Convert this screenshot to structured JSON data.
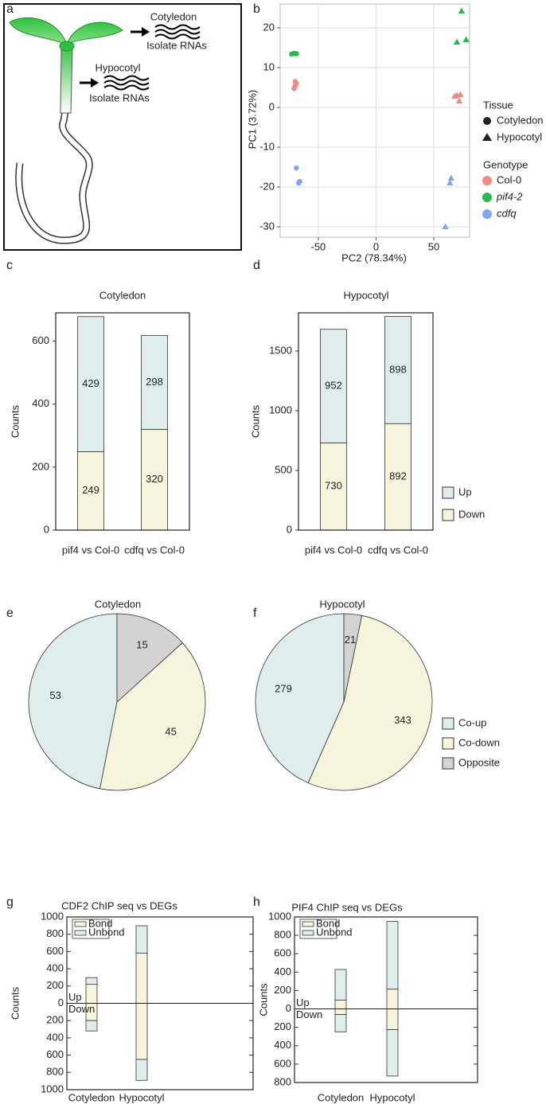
{
  "panel_labels": [
    "a",
    "b",
    "c",
    "d",
    "e",
    "f",
    "g",
    "h"
  ],
  "diagram": {
    "cotyledon_label": "Cotyledon",
    "cotyledon_action": "Isolate RNAs",
    "hypocotyl_label": "Hypocotyl",
    "hypocotyl_action": "Isolate RNAs"
  },
  "chart_data": [
    {
      "type": "scatter",
      "xlabel": "PC2 (78.34%)",
      "ylabel": "PC1 (3.72%)",
      "xlim": [
        -83,
        81
      ],
      "ylim": [
        -32.6,
        26
      ],
      "xticks": [
        -50,
        0,
        50
      ],
      "yticks": [
        -30,
        -20,
        -10,
        0,
        10,
        20
      ],
      "grid": true,
      "legend": {
        "position": "right",
        "groups": [
          {
            "title": "Tissue",
            "entries": [
              {
                "name": "Cotyledon",
                "marker": "circle"
              },
              {
                "name": "Hypocotyl",
                "marker": "triangle"
              }
            ]
          },
          {
            "title": "Genotype",
            "entries": [
              {
                "name": "Col-0",
                "color": "#f08a82"
              },
              {
                "name": "pif4-2",
                "color": "#2db84c",
                "italic": true
              },
              {
                "name": "cdfq",
                "color": "#80a8e8",
                "italic": true
              }
            ]
          }
        ]
      },
      "series": [
        {
          "tissue": 0,
          "genotype": 0,
          "x": [
            -70,
            -71,
            -69,
            -70
          ],
          "values": [
            6.5,
            4.8,
            6,
            5.5
          ]
        },
        {
          "tissue": 0,
          "genotype": 1,
          "x": [
            -71,
            -73,
            -69
          ],
          "values": [
            13.6,
            13.4,
            13.5
          ]
        },
        {
          "tissue": 0,
          "genotype": 2,
          "x": [
            -69,
            -66,
            -67
          ],
          "values": [
            -15.2,
            -18.6,
            -19
          ]
        },
        {
          "tissue": 1,
          "genotype": 0,
          "x": [
            70,
            72,
            68,
            73
          ],
          "values": [
            3,
            1.6,
            2.8,
            3.2
          ]
        },
        {
          "tissue": 1,
          "genotype": 1,
          "x": [
            74,
            70,
            78
          ],
          "values": [
            24.2,
            16.4,
            17
          ]
        },
        {
          "tissue": 1,
          "genotype": 2,
          "x": [
            65,
            64,
            60
          ],
          "values": [
            -17.8,
            -19,
            -30
          ]
        }
      ]
    },
    {
      "type": "stacked_bar",
      "title": "Cotyledon",
      "ylabel": "Counts",
      "categories": [
        "pif4 vs Col-0",
        "cdfq vs Col-0"
      ],
      "ylim": [
        0,
        690
      ],
      "yticks": [
        0,
        200,
        400,
        600
      ],
      "data_labels": true,
      "series": [
        {
          "color": "#f6f4dc",
          "values": [
            249,
            320
          ]
        },
        {
          "color": "#e0eded",
          "values": [
            429,
            298
          ]
        }
      ]
    },
    {
      "type": "stacked_bar",
      "title": "Hypocotyl",
      "ylabel": "Counts",
      "categories": [
        "pif4 vs Col-0",
        "cdfq vs Col-0"
      ],
      "ylim": [
        0,
        1820
      ],
      "yticks": [
        0,
        500,
        1000,
        1500
      ],
      "data_labels": true,
      "legend": "right",
      "series": [
        {
          "name": "Down",
          "color": "#f6f4dc",
          "values": [
            730,
            892
          ]
        },
        {
          "name": "Up",
          "color": "#e0eded",
          "values": [
            952,
            898
          ]
        }
      ]
    },
    {
      "type": "pie",
      "title": "Cotyledon",
      "values": [
        53,
        45,
        15
      ],
      "colors": [
        "#e0eded",
        "#f6f4dc",
        "#d3d3d3"
      ],
      "start_angle": 0,
      "direction": "counterclockwise",
      "data_labels": true
    },
    {
      "type": "pie",
      "title": "Hypocotyl",
      "categories": [
        "Co-up",
        "Co-down",
        "Opposite"
      ],
      "values": [
        279,
        343,
        21
      ],
      "colors": [
        "#e0eded",
        "#f6f4dc",
        "#d3d3d3"
      ],
      "start_angle": 0,
      "direction": "counterclockwise",
      "data_labels": true,
      "legend": "right"
    },
    {
      "type": "diverging_bar",
      "title": "CDF2 ChIP seq vs DEGs",
      "ylabel": "Counts",
      "categories": [
        "Cotyledon",
        "Hypocotyl"
      ],
      "ylim": [
        -1000,
        1000
      ],
      "yticks": [
        1000,
        800,
        600,
        400,
        200,
        0,
        {
          "value": -200,
          "label": "200"
        },
        {
          "value": -400,
          "label": "400"
        },
        {
          "value": -600,
          "label": "600"
        },
        {
          "value": -800,
          "label": "800"
        },
        {
          "value": -1000,
          "label": "1000"
        }
      ],
      "annotations": [
        "Up",
        "Down"
      ],
      "legend": "upper left",
      "series": [
        {
          "name": "Bond",
          "color": "#f6f4dc",
          "up": [
            220,
            580
          ],
          "down": [
            -200,
            -650
          ]
        },
        {
          "name": "Unbond",
          "color": "#e0eded",
          "up": [
            78,
            318
          ],
          "down": [
            -120,
            -242
          ]
        }
      ]
    },
    {
      "type": "diverging_bar",
      "title": "PIF4 ChIP seq vs DEGs",
      "ylabel": "Counts",
      "categories": [
        "Cotyledon",
        "Hypocotyl"
      ],
      "ylim": [
        -800,
        1000
      ],
      "yticks": [
        1000,
        800,
        600,
        400,
        200,
        0,
        {
          "value": -200,
          "label": "200"
        },
        {
          "value": -400,
          "label": "400"
        },
        {
          "value": -600,
          "label": "600"
        },
        {
          "value": -800,
          "label": "800"
        }
      ],
      "annotations": [
        "Up",
        "Down"
      ],
      "legend": "upper left",
      "series": [
        {
          "name": "Bond",
          "color": "#f6f4dc",
          "up": [
            95,
            215
          ],
          "down": [
            -60,
            -225
          ]
        },
        {
          "name": "Unbond",
          "color": "#e0eded",
          "up": [
            334,
            737
          ],
          "down": [
            -189,
            -505
          ]
        }
      ]
    }
  ]
}
